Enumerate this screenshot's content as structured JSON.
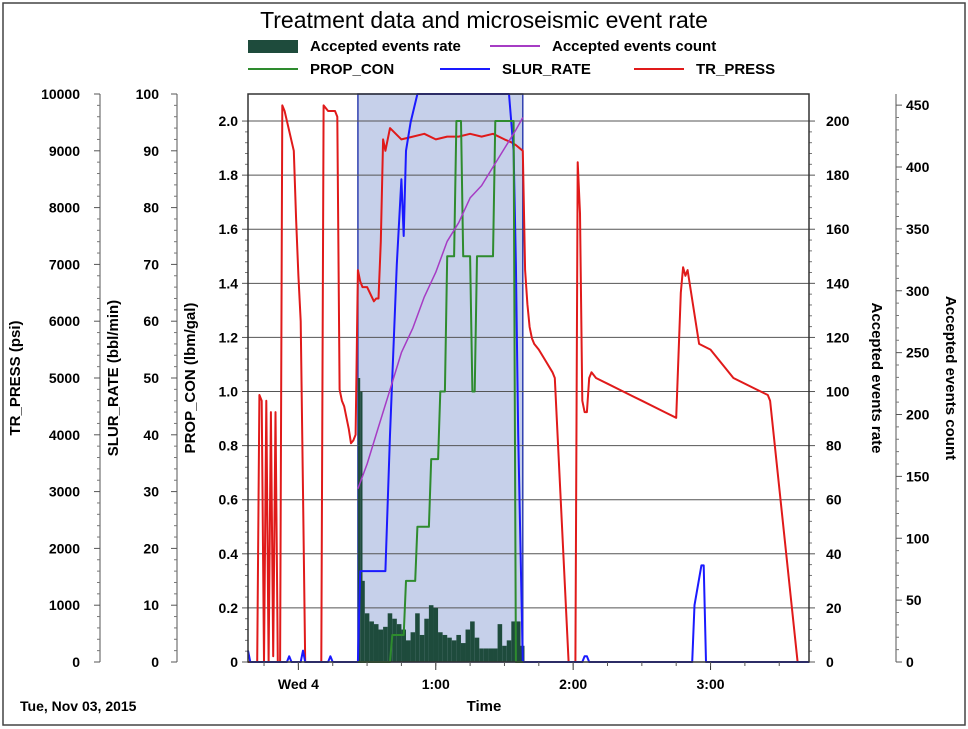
{
  "chart_data": {
    "type": "line",
    "title": "Treatment data and microseismic event rate",
    "xlabel": "Time",
    "date_label": "Tue, Nov 03, 2015",
    "x_ticks": [
      {
        "t": "00:00",
        "label": "Wed 4"
      },
      {
        "t": "01:00",
        "label": "1:00"
      },
      {
        "t": "02:00",
        "label": "2:00"
      },
      {
        "t": "03:00",
        "label": "3:00"
      }
    ],
    "xlim": [
      "23:38",
      "03:43"
    ],
    "highlight_window": [
      "00:26",
      "01:38"
    ],
    "axes": {
      "tr_press": {
        "label": "TR_PRESS (psi)",
        "lim": [
          0,
          10000
        ],
        "ticks": [
          0,
          1000,
          2000,
          3000,
          4000,
          5000,
          6000,
          7000,
          8000,
          9000,
          10000
        ]
      },
      "slur_rate": {
        "label": "SLUR_RATE (bbl/min)",
        "lim": [
          0,
          100
        ],
        "ticks": [
          0,
          10,
          20,
          30,
          40,
          50,
          60,
          70,
          80,
          90,
          100
        ]
      },
      "prop_con": {
        "label": "PROP_CON (lbm/gal)",
        "lim": [
          0,
          2.1
        ],
        "ticks": [
          "0",
          "0.2",
          "0.4",
          "0.6",
          "0.8",
          "1.0",
          "1.2",
          "1.4",
          "1.6",
          "1.8",
          "2.0"
        ]
      },
      "events_rate": {
        "label": "Accepted events rate",
        "lim": [
          0,
          210
        ],
        "ticks": [
          0,
          20,
          40,
          60,
          80,
          100,
          120,
          140,
          160,
          180,
          200
        ]
      },
      "events_count": {
        "label": "Accepted events count",
        "lim": [
          0,
          459
        ],
        "ticks": [
          0,
          50,
          100,
          150,
          200,
          250,
          300,
          350,
          400,
          450
        ]
      }
    },
    "legend": [
      {
        "name": "Accepted events rate",
        "color": "#1e4b3c",
        "kind": "bar"
      },
      {
        "name": "Accepted events count",
        "color": "#a63cc4",
        "kind": "line"
      },
      {
        "name": "PROP_CON",
        "color": "#2e8b2e",
        "kind": "line"
      },
      {
        "name": "SLUR_RATE",
        "color": "#1a1aff",
        "kind": "line"
      },
      {
        "name": "TR_PRESS",
        "color": "#e01a1a",
        "kind": "line"
      }
    ],
    "series": [
      {
        "name": "TR_PRESS",
        "axis": "tr_press",
        "color": "#e01a1a",
        "kind": "line",
        "x": [
          "23:38",
          "23:42",
          "23:43",
          "23:44",
          "23:45",
          "23:46",
          "23:47",
          "23:48",
          "23:49",
          "23:50",
          "23:51",
          "23:52",
          "23:53",
          "23:54",
          "23:58",
          "23:59",
          "00:00",
          "00:01",
          "00:02",
          "00:03",
          "00:05",
          "00:06",
          "00:10",
          "00:11",
          "00:13",
          "00:16",
          "00:17",
          "00:18",
          "00:19",
          "00:20",
          "00:21",
          "00:22",
          "00:23",
          "00:24",
          "00:25",
          "00:26",
          "00:27",
          "00:28",
          "00:30",
          "00:33",
          "00:34",
          "00:35",
          "00:36",
          "00:37",
          "00:38",
          "00:40",
          "00:45",
          "00:50",
          "00:55",
          "01:00",
          "01:05",
          "01:10",
          "01:15",
          "01:20",
          "01:25",
          "01:30",
          "01:33",
          "01:35",
          "01:38",
          "01:39",
          "01:40",
          "01:41",
          "01:42",
          "01:43",
          "01:45",
          "01:48",
          "01:51",
          "01:52",
          "01:58",
          "01:59",
          "02:00",
          "02:01",
          "02:02",
          "02:03",
          "02:04",
          "02:05",
          "02:06",
          "02:07",
          "02:08",
          "02:10",
          "02:15",
          "02:20",
          "02:30",
          "02:40",
          "02:45",
          "02:47",
          "02:48",
          "02:49",
          "02:50",
          "02:55",
          "03:00",
          "03:10",
          "03:20",
          "03:25",
          "03:26",
          "03:38",
          "03:43"
        ],
        "values": [
          0,
          0,
          4700,
          4600,
          0,
          4600,
          0,
          4400,
          100,
          4400,
          0,
          0,
          9800,
          9700,
          9000,
          7800,
          6800,
          6000,
          3000,
          0,
          0,
          0,
          0,
          9800,
          9700,
          9700,
          9600,
          4800,
          4600,
          4500,
          4300,
          4100,
          3850,
          3900,
          4000,
          6900,
          6700,
          6600,
          6600,
          6350,
          6400,
          6400,
          7400,
          9200,
          9000,
          9400,
          9200,
          9250,
          9300,
          9200,
          9250,
          9250,
          9300,
          9250,
          9300,
          9200,
          9150,
          9100,
          9000,
          6900,
          6300,
          5900,
          5700,
          5600,
          5500,
          5300,
          5100,
          5000,
          0,
          0,
          0,
          0,
          8800,
          7900,
          4600,
          4400,
          4400,
          5000,
          5100,
          5000,
          4900,
          4800,
          4600,
          4400,
          4300,
          6500,
          6950,
          6800,
          6900,
          5600,
          5500,
          5000,
          4800,
          4700,
          4600,
          0,
          0
        ]
      },
      {
        "name": "SLUR_RATE",
        "axis": "slur_rate",
        "color": "#1a1aff",
        "kind": "line",
        "x": [
          "23:38",
          "23:39",
          "23:40",
          "23:41",
          "23:55",
          "23:56",
          "23:57",
          "00:01",
          "00:02",
          "00:03",
          "00:13",
          "00:14",
          "00:15",
          "00:26",
          "00:27",
          "00:28",
          "00:30",
          "00:35",
          "00:38",
          "00:40",
          "00:43",
          "00:45",
          "00:46",
          "00:47",
          "00:49",
          "00:52",
          "00:55",
          "01:00",
          "01:05",
          "01:10",
          "01:15",
          "01:20",
          "01:25",
          "01:30",
          "01:32",
          "01:34",
          "01:35",
          "01:36",
          "01:38",
          "01:39",
          "02:04",
          "02:05",
          "02:06",
          "02:07",
          "02:52",
          "02:53",
          "02:56",
          "02:57",
          "02:58",
          "03:43"
        ],
        "values": [
          2,
          0,
          0,
          0,
          0,
          1,
          0,
          0,
          2,
          0,
          0,
          1,
          0,
          0,
          16,
          16,
          16,
          16,
          16,
          40,
          70,
          85,
          75,
          90,
          95,
          100,
          100,
          100,
          100,
          100,
          100,
          100,
          100,
          100,
          100,
          90,
          70,
          40,
          0,
          0,
          0,
          1,
          1,
          0,
          0,
          10,
          17,
          17,
          0,
          0
        ]
      },
      {
        "name": "PROP_CON",
        "axis": "prop_con",
        "color": "#2e8b2e",
        "kind": "line",
        "x": [
          "00:26",
          "00:40",
          "00:41",
          "00:46",
          "00:47",
          "00:51",
          "00:52",
          "00:57",
          "00:58",
          "01:01",
          "01:02",
          "01:04",
          "01:05",
          "01:08",
          "01:09",
          "01:11",
          "01:12",
          "01:15",
          "01:16",
          "01:17",
          "01:18",
          "01:25",
          "01:26",
          "01:34",
          "01:35",
          "01:38"
        ],
        "values": [
          0,
          0,
          0.1,
          0.1,
          0.3,
          0.3,
          0.5,
          0.5,
          0.75,
          0.75,
          1.0,
          1.0,
          1.5,
          1.5,
          2.0,
          2.0,
          1.5,
          1.5,
          1.0,
          1.0,
          1.5,
          1.5,
          2.0,
          2.0,
          0,
          0
        ]
      },
      {
        "name": "Accepted events count",
        "axis": "events_count",
        "color": "#a63cc4",
        "kind": "line",
        "x": [
          "00:26",
          "00:30",
          "00:35",
          "00:40",
          "00:45",
          "00:50",
          "00:55",
          "01:00",
          "01:05",
          "01:10",
          "01:15",
          "01:20",
          "01:25",
          "01:30",
          "01:35",
          "01:38"
        ],
        "values": [
          140,
          160,
          190,
          220,
          250,
          270,
          295,
          315,
          340,
          355,
          375,
          385,
          400,
          415,
          430,
          440
        ]
      },
      {
        "name": "Accepted events rate",
        "axis": "events_rate",
        "color": "#1e4b3c",
        "kind": "bar",
        "x": [
          "00:26",
          "00:27",
          "00:28",
          "00:29",
          "00:31",
          "00:33",
          "00:35",
          "00:37",
          "00:39",
          "00:41",
          "00:43",
          "00:45",
          "00:47",
          "00:49",
          "00:51",
          "00:53",
          "00:55",
          "00:57",
          "00:59",
          "01:01",
          "01:03",
          "01:05",
          "01:07",
          "01:09",
          "01:11",
          "01:13",
          "01:15",
          "01:17",
          "01:19",
          "01:21",
          "01:23",
          "01:25",
          "01:27",
          "01:29",
          "01:31",
          "01:33",
          "01:35",
          "01:37"
        ],
        "values": [
          105,
          100,
          30,
          18,
          15,
          14,
          12,
          13,
          18,
          16,
          14,
          12,
          8,
          11,
          18,
          10,
          16,
          21,
          20,
          11,
          10,
          9,
          8,
          10,
          7,
          12,
          15,
          9,
          5,
          5,
          5,
          5,
          14,
          6,
          8,
          15,
          15,
          6
        ]
      }
    ]
  }
}
